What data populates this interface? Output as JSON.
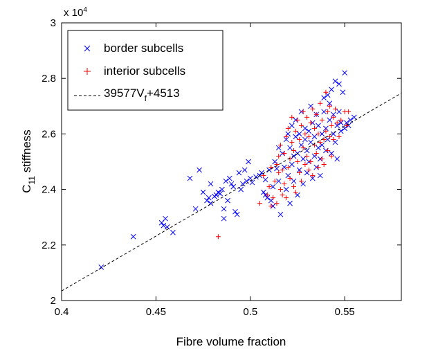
{
  "chart_data": {
    "type": "scatter",
    "xlabel": "Fibre volume fraction",
    "ylabel_main": "C",
    "ylabel_sub": "11",
    "ylabel_rest": " stiffness",
    "exponent_label": "x 10",
    "exponent_power": "4",
    "xlim": [
      0.4,
      0.58
    ],
    "ylim": [
      20000,
      30000
    ],
    "x_ticks": [
      0.4,
      0.45,
      0.5,
      0.55
    ],
    "x_tick_labels": [
      "0.4",
      "0.45",
      "0.5",
      "0.55"
    ],
    "y_ticks": [
      20000,
      22000,
      24000,
      26000,
      28000,
      30000
    ],
    "y_tick_labels": [
      "2",
      "2.2",
      "2.4",
      "2.6",
      "2.8",
      "3"
    ],
    "grid": false,
    "legend_position": "top-left",
    "series": [
      {
        "name": "border subcells",
        "marker": "x",
        "color": "#0000ff",
        "points": [
          [
            0.421,
            21200
          ],
          [
            0.438,
            22300
          ],
          [
            0.453,
            22800
          ],
          [
            0.454,
            22700
          ],
          [
            0.455,
            22950
          ],
          [
            0.456,
            22650
          ],
          [
            0.459,
            22450
          ],
          [
            0.468,
            24400
          ],
          [
            0.471,
            23300
          ],
          [
            0.473,
            24700
          ],
          [
            0.475,
            23900
          ],
          [
            0.477,
            23600
          ],
          [
            0.478,
            23700
          ],
          [
            0.479,
            24200
          ],
          [
            0.479,
            23500
          ],
          [
            0.481,
            23750
          ],
          [
            0.482,
            23800
          ],
          [
            0.483,
            23900
          ],
          [
            0.484,
            23850
          ],
          [
            0.485,
            24000
          ],
          [
            0.486,
            23300
          ],
          [
            0.486,
            22950
          ],
          [
            0.487,
            24300
          ],
          [
            0.488,
            23600
          ],
          [
            0.489,
            24400
          ],
          [
            0.49,
            24200
          ],
          [
            0.491,
            24100
          ],
          [
            0.492,
            23200
          ],
          [
            0.493,
            23100
          ],
          [
            0.494,
            24600
          ],
          [
            0.495,
            24000
          ],
          [
            0.496,
            24200
          ],
          [
            0.497,
            24700
          ],
          [
            0.498,
            24300
          ],
          [
            0.499,
            25000
          ],
          [
            0.5,
            24400
          ],
          [
            0.501,
            24250
          ],
          [
            0.503,
            24450
          ],
          [
            0.505,
            24500
          ],
          [
            0.506,
            24600
          ],
          [
            0.507,
            23900
          ],
          [
            0.508,
            24350
          ],
          [
            0.508,
            23800
          ],
          [
            0.509,
            23700
          ],
          [
            0.51,
            24700
          ],
          [
            0.511,
            23600
          ],
          [
            0.512,
            24100
          ],
          [
            0.512,
            23400
          ],
          [
            0.513,
            25000
          ],
          [
            0.514,
            24750
          ],
          [
            0.515,
            24300
          ],
          [
            0.515,
            25500
          ],
          [
            0.516,
            23100
          ],
          [
            0.517,
            25300
          ],
          [
            0.518,
            24800
          ],
          [
            0.519,
            24000
          ],
          [
            0.519,
            25800
          ],
          [
            0.52,
            26000
          ],
          [
            0.52,
            24500
          ],
          [
            0.521,
            25500
          ],
          [
            0.521,
            23500
          ],
          [
            0.522,
            26300
          ],
          [
            0.522,
            24900
          ],
          [
            0.523,
            25200
          ],
          [
            0.523,
            24300
          ],
          [
            0.524,
            25900
          ],
          [
            0.524,
            26500
          ],
          [
            0.525,
            25300
          ],
          [
            0.525,
            23800
          ],
          [
            0.526,
            26000
          ],
          [
            0.526,
            24700
          ],
          [
            0.527,
            25600
          ],
          [
            0.527,
            26800
          ],
          [
            0.528,
            25100
          ],
          [
            0.528,
            24200
          ],
          [
            0.529,
            25800
          ],
          [
            0.529,
            26200
          ],
          [
            0.53,
            25400
          ],
          [
            0.53,
            24600
          ],
          [
            0.531,
            26100
          ],
          [
            0.531,
            25000
          ],
          [
            0.532,
            27000
          ],
          [
            0.532,
            25700
          ],
          [
            0.533,
            24400
          ],
          [
            0.533,
            26400
          ],
          [
            0.534,
            25200
          ],
          [
            0.534,
            25900
          ],
          [
            0.535,
            26700
          ],
          [
            0.535,
            24800
          ],
          [
            0.536,
            25500
          ],
          [
            0.536,
            26300
          ],
          [
            0.537,
            25100
          ],
          [
            0.537,
            24500
          ],
          [
            0.538,
            26000
          ],
          [
            0.538,
            25600
          ],
          [
            0.539,
            26800
          ],
          [
            0.539,
            27300
          ],
          [
            0.54,
            25400
          ],
          [
            0.54,
            26200
          ],
          [
            0.541,
            27400
          ],
          [
            0.541,
            25800
          ],
          [
            0.542,
            27100
          ],
          [
            0.542,
            26500
          ],
          [
            0.543,
            25300
          ],
          [
            0.543,
            27600
          ],
          [
            0.544,
            26000
          ],
          [
            0.544,
            26700
          ],
          [
            0.545,
            25700
          ],
          [
            0.545,
            27900
          ],
          [
            0.546,
            26300
          ],
          [
            0.546,
            25100
          ],
          [
            0.547,
            27800
          ],
          [
            0.547,
            26800
          ],
          [
            0.548,
            26100
          ],
          [
            0.548,
            26400
          ],
          [
            0.549,
            27500
          ],
          [
            0.55,
            28200
          ],
          [
            0.55,
            26200
          ],
          [
            0.551,
            26400
          ],
          [
            0.552,
            26300
          ],
          [
            0.553,
            26500
          ],
          [
            0.555,
            26600
          ]
        ]
      },
      {
        "name": "interior subcells",
        "marker": "+",
        "color": "#ff0000",
        "points": [
          [
            0.483,
            22300
          ],
          [
            0.505,
            23500
          ],
          [
            0.507,
            24500
          ],
          [
            0.509,
            23800
          ],
          [
            0.51,
            24100
          ],
          [
            0.511,
            23400
          ],
          [
            0.511,
            24800
          ],
          [
            0.512,
            23700
          ],
          [
            0.513,
            24300
          ],
          [
            0.514,
            24900
          ],
          [
            0.514,
            23500
          ],
          [
            0.515,
            25200
          ],
          [
            0.515,
            24600
          ],
          [
            0.516,
            24000
          ],
          [
            0.516,
            25600
          ],
          [
            0.517,
            23800
          ],
          [
            0.517,
            24700
          ],
          [
            0.518,
            25300
          ],
          [
            0.518,
            24200
          ],
          [
            0.519,
            25900
          ],
          [
            0.519,
            23700
          ],
          [
            0.52,
            24800
          ],
          [
            0.52,
            26200
          ],
          [
            0.521,
            25100
          ],
          [
            0.521,
            24400
          ],
          [
            0.522,
            25700
          ],
          [
            0.522,
            26600
          ],
          [
            0.523,
            24100
          ],
          [
            0.523,
            25400
          ],
          [
            0.524,
            26100
          ],
          [
            0.524,
            23900
          ],
          [
            0.525,
            25000
          ],
          [
            0.525,
            26500
          ],
          [
            0.526,
            24600
          ],
          [
            0.526,
            25800
          ],
          [
            0.527,
            26300
          ],
          [
            0.527,
            24300
          ],
          [
            0.528,
            25500
          ],
          [
            0.528,
            26800
          ],
          [
            0.529,
            24900
          ],
          [
            0.529,
            26000
          ],
          [
            0.53,
            25200
          ],
          [
            0.53,
            26600
          ],
          [
            0.531,
            24700
          ],
          [
            0.531,
            25900
          ],
          [
            0.532,
            26400
          ],
          [
            0.532,
            25000
          ],
          [
            0.533,
            26900
          ],
          [
            0.533,
            24500
          ],
          [
            0.534,
            25600
          ],
          [
            0.534,
            26200
          ],
          [
            0.535,
            25300
          ],
          [
            0.535,
            26700
          ],
          [
            0.536,
            24800
          ],
          [
            0.536,
            26000
          ],
          [
            0.537,
            25700
          ],
          [
            0.537,
            27100
          ],
          [
            0.538,
            25100
          ],
          [
            0.538,
            26500
          ],
          [
            0.539,
            25800
          ],
          [
            0.539,
            24900
          ],
          [
            0.54,
            27500
          ],
          [
            0.54,
            26100
          ],
          [
            0.541,
            25400
          ],
          [
            0.541,
            26800
          ],
          [
            0.542,
            25900
          ],
          [
            0.542,
            27000
          ],
          [
            0.543,
            26300
          ],
          [
            0.543,
            25200
          ],
          [
            0.544,
            26600
          ],
          [
            0.544,
            25800
          ],
          [
            0.545,
            26900
          ],
          [
            0.546,
            26400
          ],
          [
            0.547,
            25900
          ],
          [
            0.548,
            26500
          ],
          [
            0.55,
            26800
          ],
          [
            0.551,
            26300
          ],
          [
            0.552,
            26800
          ]
        ]
      },
      {
        "name": "39577V_f+4513",
        "type": "line",
        "dash": "dashed",
        "color": "#000000",
        "slope": 39577,
        "intercept": 4513
      }
    ],
    "legend_entries": [
      {
        "label": "border subcells"
      },
      {
        "label": "interior subcells"
      },
      {
        "label_main": "39577V",
        "label_sub": "f",
        "label_rest": "+4513"
      }
    ]
  }
}
